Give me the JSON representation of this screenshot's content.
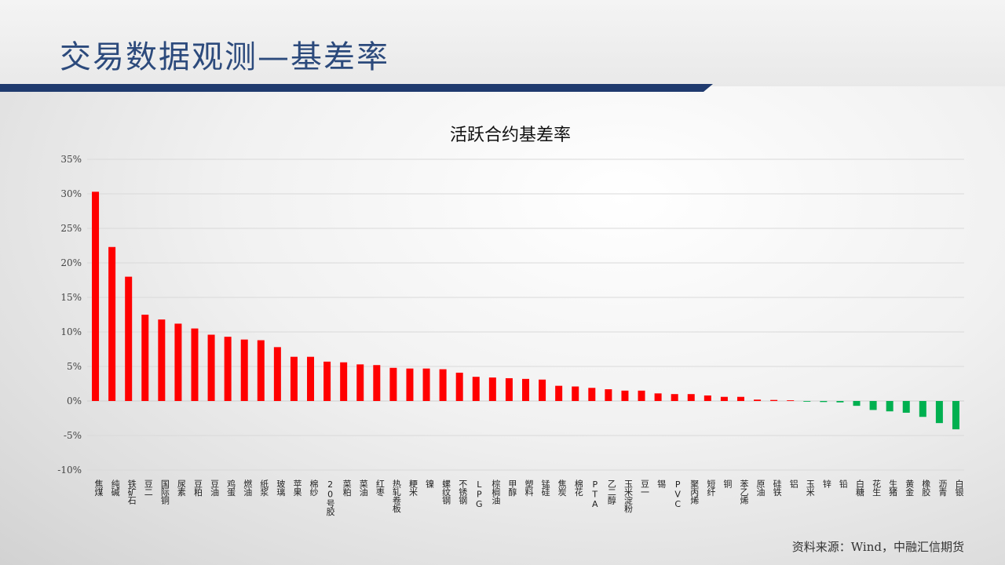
{
  "page": {
    "title": "交易数据观测—基差率",
    "source": "资料来源：Wind，中融汇信期货"
  },
  "colors": {
    "positive": "#ff0000",
    "negative": "#00b050",
    "title": "#2c4a7c",
    "bar": "#1f3a6e"
  },
  "chart_data": {
    "type": "bar",
    "title": "活跃合约基差率",
    "xlabel": "",
    "ylabel": "",
    "ylim": [
      -10,
      35
    ],
    "yticks": [
      -10,
      -5,
      0,
      5,
      10,
      15,
      20,
      25,
      30,
      35
    ],
    "ytick_labels": [
      "-10%",
      "-5%",
      "0%",
      "5%",
      "10%",
      "15%",
      "20%",
      "25%",
      "30%",
      "35%"
    ],
    "grid": true,
    "legend": "none",
    "categories": [
      "焦煤",
      "纯碱",
      "铁矿石",
      "豆二",
      "国际铜",
      "尿素",
      "豆粕",
      "豆油",
      "鸡蛋",
      "燃油",
      "纸浆",
      "玻璃",
      "苹果",
      "棉纱",
      "20号胶",
      "菜粕",
      "菜油",
      "红枣",
      "热轧卷板",
      "粳米",
      "镍",
      "螺纹钢",
      "不锈钢",
      "LPG",
      "棕榈油",
      "甲醇",
      "塑料",
      "锰硅",
      "焦炭",
      "棉花",
      "PTA",
      "乙二醇",
      "玉米淀粉",
      "豆一",
      "锡",
      "PVC",
      "聚丙烯",
      "短纤",
      "铜",
      "苯乙烯",
      "原油",
      "硅铁",
      "铝",
      "玉米",
      "锌",
      "铅",
      "白糖",
      "花生",
      "生猪",
      "黄金",
      "橡胶",
      "沥青",
      "白银"
    ],
    "values": [
      30.3,
      22.3,
      18.0,
      12.5,
      11.8,
      11.2,
      10.5,
      9.6,
      9.3,
      8.9,
      8.8,
      7.8,
      6.4,
      6.4,
      5.7,
      5.6,
      5.3,
      5.2,
      4.8,
      4.7,
      4.7,
      4.6,
      4.1,
      3.5,
      3.4,
      3.3,
      3.2,
      3.1,
      2.2,
      2.1,
      1.9,
      1.7,
      1.5,
      1.5,
      1.1,
      1.0,
      1.0,
      0.8,
      0.6,
      0.6,
      0.2,
      0.15,
      0.1,
      -0.1,
      -0.15,
      -0.2,
      -0.7,
      -1.3,
      -1.5,
      -1.7,
      -2.3,
      -3.2,
      -4.1
    ]
  }
}
